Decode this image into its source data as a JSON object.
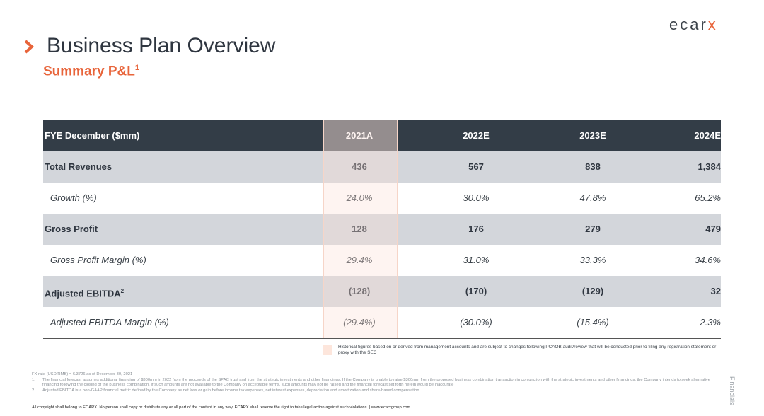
{
  "brand": {
    "logo_main": "ecar",
    "logo_accent": "x"
  },
  "page": {
    "title": "Business Plan Overview",
    "subtitle": "Summary P&L",
    "subtitle_sup": "1",
    "side_tab": "Financials"
  },
  "table": {
    "headers": [
      "FYE December ($mm)",
      "2021A",
      "2022E",
      "2023E",
      "2024E"
    ],
    "rows": [
      {
        "style": "bold",
        "label": "Total Revenues",
        "values": [
          "436",
          "567",
          "838",
          "1,384"
        ]
      },
      {
        "style": "it",
        "label": "Growth (%)",
        "values": [
          "24.0%",
          "30.0%",
          "47.8%",
          "65.2%"
        ]
      },
      {
        "style": "bold",
        "label": "Gross Profit",
        "values": [
          "128",
          "176",
          "279",
          "479"
        ]
      },
      {
        "style": "it",
        "label": "Gross Profit Margin (%)",
        "values": [
          "29.4%",
          "31.0%",
          "33.3%",
          "34.6%"
        ]
      },
      {
        "style": "bold",
        "label": "Adjusted EBITDA",
        "label_sup": "2",
        "values": [
          "(128)",
          "(170)",
          "(129)",
          "32"
        ]
      },
      {
        "style": "it",
        "label": "Adjusted EBITDA Margin (%)",
        "values": [
          "(29.4%)",
          "(30.0%)",
          "(15.4%)",
          "2.3%"
        ]
      }
    ]
  },
  "legend": {
    "text": "Historical figures based on or derived from management accounts and are subject to changes following PCAOB audit/review that will be conducted prior to filing any registration statement or proxy with the SEC"
  },
  "notes": {
    "fx": "FX rate (USD/RMB) = 6.3726 as of December 30, 2021",
    "items": [
      {
        "num": "1.",
        "text": "The financial forecast assumes additional financing of $300mm in 2022 from the proceeds of the SPAC trust and from the strategic investments and other financings. If the Company is unable to raise $300mm from the proposed business combination transaction in conjunction with the strategic investments and other financings, the Company intends to seek alternative financing following the closing of the business combination. If such amounts are not available to the Company on acceptable terms, such amounts may not be raised and the financial forecast set forth herein would be inaccurate"
      },
      {
        "num": "2.",
        "text": "Adjusted EBITDA is a non-GAAP financial metric defined by the Company as net loss or gain before income tax expenses, net interest expenses, depreciation and amortization and share-based compensation"
      }
    ],
    "copyright": "All copyright shall belong to ECARX.  No person shall copy or distribute any or all part of the content in any way.  ECARX shall reserve the right to take legal action against such violations. | www.ecarxgroup.com"
  },
  "colors": {
    "accent": "#e8643a",
    "header_bg": "#333d47",
    "bold_row_bg": "#d3d6db"
  }
}
